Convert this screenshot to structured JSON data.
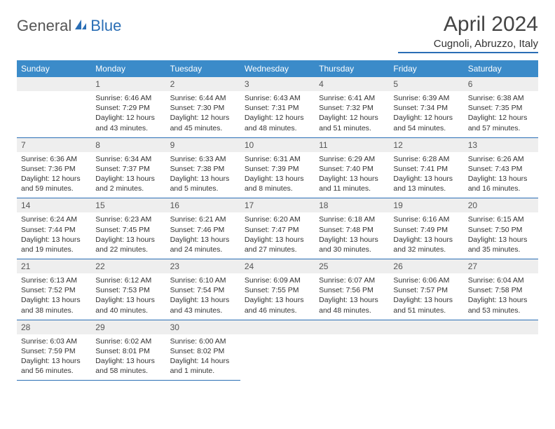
{
  "logo": {
    "part1": "General",
    "part2": "Blue"
  },
  "title": "April 2024",
  "location": "Cugnoli, Abruzzo, Italy",
  "colors": {
    "header_bg": "#3b8bc9",
    "accent": "#2a6eb5",
    "daynum_bg": "#eeeeee",
    "text": "#333333"
  },
  "day_names": [
    "Sunday",
    "Monday",
    "Tuesday",
    "Wednesday",
    "Thursday",
    "Friday",
    "Saturday"
  ],
  "weeks": [
    [
      {
        "n": "",
        "sr": "",
        "ss": "",
        "dl": ""
      },
      {
        "n": "1",
        "sr": "Sunrise: 6:46 AM",
        "ss": "Sunset: 7:29 PM",
        "dl": "Daylight: 12 hours and 43 minutes."
      },
      {
        "n": "2",
        "sr": "Sunrise: 6:44 AM",
        "ss": "Sunset: 7:30 PM",
        "dl": "Daylight: 12 hours and 45 minutes."
      },
      {
        "n": "3",
        "sr": "Sunrise: 6:43 AM",
        "ss": "Sunset: 7:31 PM",
        "dl": "Daylight: 12 hours and 48 minutes."
      },
      {
        "n": "4",
        "sr": "Sunrise: 6:41 AM",
        "ss": "Sunset: 7:32 PM",
        "dl": "Daylight: 12 hours and 51 minutes."
      },
      {
        "n": "5",
        "sr": "Sunrise: 6:39 AM",
        "ss": "Sunset: 7:34 PM",
        "dl": "Daylight: 12 hours and 54 minutes."
      },
      {
        "n": "6",
        "sr": "Sunrise: 6:38 AM",
        "ss": "Sunset: 7:35 PM",
        "dl": "Daylight: 12 hours and 57 minutes."
      }
    ],
    [
      {
        "n": "7",
        "sr": "Sunrise: 6:36 AM",
        "ss": "Sunset: 7:36 PM",
        "dl": "Daylight: 12 hours and 59 minutes."
      },
      {
        "n": "8",
        "sr": "Sunrise: 6:34 AM",
        "ss": "Sunset: 7:37 PM",
        "dl": "Daylight: 13 hours and 2 minutes."
      },
      {
        "n": "9",
        "sr": "Sunrise: 6:33 AM",
        "ss": "Sunset: 7:38 PM",
        "dl": "Daylight: 13 hours and 5 minutes."
      },
      {
        "n": "10",
        "sr": "Sunrise: 6:31 AM",
        "ss": "Sunset: 7:39 PM",
        "dl": "Daylight: 13 hours and 8 minutes."
      },
      {
        "n": "11",
        "sr": "Sunrise: 6:29 AM",
        "ss": "Sunset: 7:40 PM",
        "dl": "Daylight: 13 hours and 11 minutes."
      },
      {
        "n": "12",
        "sr": "Sunrise: 6:28 AM",
        "ss": "Sunset: 7:41 PM",
        "dl": "Daylight: 13 hours and 13 minutes."
      },
      {
        "n": "13",
        "sr": "Sunrise: 6:26 AM",
        "ss": "Sunset: 7:43 PM",
        "dl": "Daylight: 13 hours and 16 minutes."
      }
    ],
    [
      {
        "n": "14",
        "sr": "Sunrise: 6:24 AM",
        "ss": "Sunset: 7:44 PM",
        "dl": "Daylight: 13 hours and 19 minutes."
      },
      {
        "n": "15",
        "sr": "Sunrise: 6:23 AM",
        "ss": "Sunset: 7:45 PM",
        "dl": "Daylight: 13 hours and 22 minutes."
      },
      {
        "n": "16",
        "sr": "Sunrise: 6:21 AM",
        "ss": "Sunset: 7:46 PM",
        "dl": "Daylight: 13 hours and 24 minutes."
      },
      {
        "n": "17",
        "sr": "Sunrise: 6:20 AM",
        "ss": "Sunset: 7:47 PM",
        "dl": "Daylight: 13 hours and 27 minutes."
      },
      {
        "n": "18",
        "sr": "Sunrise: 6:18 AM",
        "ss": "Sunset: 7:48 PM",
        "dl": "Daylight: 13 hours and 30 minutes."
      },
      {
        "n": "19",
        "sr": "Sunrise: 6:16 AM",
        "ss": "Sunset: 7:49 PM",
        "dl": "Daylight: 13 hours and 32 minutes."
      },
      {
        "n": "20",
        "sr": "Sunrise: 6:15 AM",
        "ss": "Sunset: 7:50 PM",
        "dl": "Daylight: 13 hours and 35 minutes."
      }
    ],
    [
      {
        "n": "21",
        "sr": "Sunrise: 6:13 AM",
        "ss": "Sunset: 7:52 PM",
        "dl": "Daylight: 13 hours and 38 minutes."
      },
      {
        "n": "22",
        "sr": "Sunrise: 6:12 AM",
        "ss": "Sunset: 7:53 PM",
        "dl": "Daylight: 13 hours and 40 minutes."
      },
      {
        "n": "23",
        "sr": "Sunrise: 6:10 AM",
        "ss": "Sunset: 7:54 PM",
        "dl": "Daylight: 13 hours and 43 minutes."
      },
      {
        "n": "24",
        "sr": "Sunrise: 6:09 AM",
        "ss": "Sunset: 7:55 PM",
        "dl": "Daylight: 13 hours and 46 minutes."
      },
      {
        "n": "25",
        "sr": "Sunrise: 6:07 AM",
        "ss": "Sunset: 7:56 PM",
        "dl": "Daylight: 13 hours and 48 minutes."
      },
      {
        "n": "26",
        "sr": "Sunrise: 6:06 AM",
        "ss": "Sunset: 7:57 PM",
        "dl": "Daylight: 13 hours and 51 minutes."
      },
      {
        "n": "27",
        "sr": "Sunrise: 6:04 AM",
        "ss": "Sunset: 7:58 PM",
        "dl": "Daylight: 13 hours and 53 minutes."
      }
    ],
    [
      {
        "n": "28",
        "sr": "Sunrise: 6:03 AM",
        "ss": "Sunset: 7:59 PM",
        "dl": "Daylight: 13 hours and 56 minutes."
      },
      {
        "n": "29",
        "sr": "Sunrise: 6:02 AM",
        "ss": "Sunset: 8:01 PM",
        "dl": "Daylight: 13 hours and 58 minutes."
      },
      {
        "n": "30",
        "sr": "Sunrise: 6:00 AM",
        "ss": "Sunset: 8:02 PM",
        "dl": "Daylight: 14 hours and 1 minute."
      },
      {
        "n": "",
        "sr": "",
        "ss": "",
        "dl": ""
      },
      {
        "n": "",
        "sr": "",
        "ss": "",
        "dl": ""
      },
      {
        "n": "",
        "sr": "",
        "ss": "",
        "dl": ""
      },
      {
        "n": "",
        "sr": "",
        "ss": "",
        "dl": ""
      }
    ]
  ]
}
